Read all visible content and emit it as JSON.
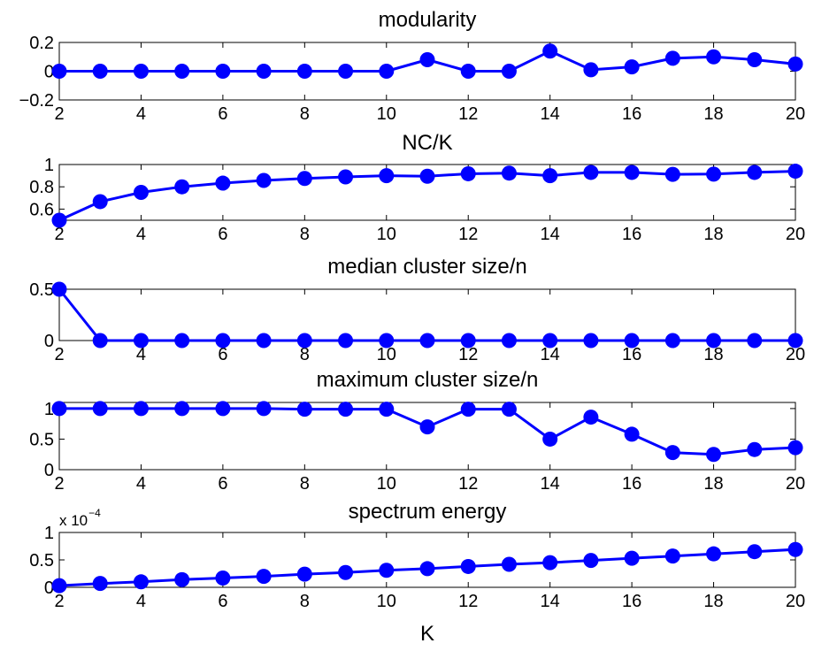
{
  "chart_data": [
    {
      "type": "line",
      "title": "modularity",
      "xlabel": "",
      "x": [
        2,
        3,
        4,
        5,
        6,
        7,
        8,
        9,
        10,
        11,
        12,
        13,
        14,
        15,
        16,
        17,
        18,
        19,
        20
      ],
      "series": [
        {
          "values": [
            0,
            0,
            0,
            0,
            0,
            0,
            0,
            0,
            0,
            0.08,
            0,
            0,
            0.14,
            0.01,
            0.03,
            0.09,
            0.1,
            0.08,
            0.05
          ]
        }
      ],
      "xlim": [
        2,
        20
      ],
      "ylim": [
        -0.2,
        0.2
      ],
      "xticks": [
        2,
        4,
        6,
        8,
        10,
        12,
        14,
        16,
        18,
        20
      ],
      "yticks": [
        -0.2,
        0,
        0.2
      ],
      "ytick_labels": [
        "−0.2",
        "0",
        "0.2"
      ],
      "color": "#0000ff",
      "grid": false
    },
    {
      "type": "line",
      "title": "NC/K",
      "xlabel": "",
      "x": [
        2,
        3,
        4,
        5,
        6,
        7,
        8,
        9,
        10,
        11,
        12,
        13,
        14,
        15,
        16,
        17,
        18,
        19,
        20
      ],
      "series": [
        {
          "values": [
            0.5,
            0.667,
            0.75,
            0.8,
            0.833,
            0.857,
            0.875,
            0.889,
            0.9,
            0.895,
            0.917,
            0.923,
            0.9,
            0.929,
            0.929,
            0.912,
            0.914,
            0.929,
            0.94
          ]
        }
      ],
      "xlim": [
        2,
        20
      ],
      "ylim": [
        0.5,
        1.0
      ],
      "xticks": [
        2,
        4,
        6,
        8,
        10,
        12,
        14,
        16,
        18,
        20
      ],
      "yticks": [
        0.6,
        0.8,
        1
      ],
      "ytick_labels": [
        "0.6",
        "0.8",
        "1"
      ],
      "color": "#0000ff",
      "grid": false
    },
    {
      "type": "line",
      "title": "median cluster size/n",
      "xlabel": "",
      "x": [
        2,
        3,
        4,
        5,
        6,
        7,
        8,
        9,
        10,
        11,
        12,
        13,
        14,
        15,
        16,
        17,
        18,
        19,
        20
      ],
      "series": [
        {
          "values": [
            0.5,
            0,
            0,
            0,
            0,
            0,
            0,
            0,
            0,
            0,
            0,
            0,
            0,
            0,
            0,
            0,
            0,
            0,
            0
          ]
        }
      ],
      "xlim": [
        2,
        20
      ],
      "ylim": [
        0,
        0.5
      ],
      "xticks": [
        2,
        4,
        6,
        8,
        10,
        12,
        14,
        16,
        18,
        20
      ],
      "yticks": [
        0,
        0.5
      ],
      "ytick_labels": [
        "0",
        "0.5"
      ],
      "color": "#0000ff",
      "grid": false
    },
    {
      "type": "line",
      "title": "maximum cluster size/n",
      "xlabel": "",
      "x": [
        2,
        3,
        4,
        5,
        6,
        7,
        8,
        9,
        10,
        11,
        12,
        13,
        14,
        15,
        16,
        17,
        18,
        19,
        20
      ],
      "series": [
        {
          "values": [
            1,
            1,
            1,
            1,
            1,
            1,
            0.99,
            0.99,
            0.99,
            0.7,
            0.99,
            0.99,
            0.5,
            0.86,
            0.58,
            0.28,
            0.25,
            0.33,
            0.36
          ]
        }
      ],
      "xlim": [
        2,
        20
      ],
      "ylim": [
        0,
        1.1
      ],
      "xticks": [
        2,
        4,
        6,
        8,
        10,
        12,
        14,
        16,
        18,
        20
      ],
      "yticks": [
        0,
        0.5,
        1
      ],
      "ytick_labels": [
        "0",
        "0.5",
        "1"
      ],
      "color": "#0000ff",
      "grid": false
    },
    {
      "type": "line",
      "title": "spectrum energy",
      "xlabel": "K",
      "x": [
        2,
        3,
        4,
        5,
        6,
        7,
        8,
        9,
        10,
        11,
        12,
        13,
        14,
        15,
        16,
        17,
        18,
        19,
        20
      ],
      "series": [
        {
          "values": [
            0.03,
            0.07,
            0.1,
            0.14,
            0.17,
            0.2,
            0.24,
            0.27,
            0.31,
            0.34,
            0.38,
            0.42,
            0.45,
            0.49,
            0.53,
            0.57,
            0.61,
            0.65,
            0.69
          ]
        }
      ],
      "xlim": [
        2,
        20
      ],
      "ylim": [
        0,
        1
      ],
      "xticks": [
        2,
        4,
        6,
        8,
        10,
        12,
        14,
        16,
        18,
        20
      ],
      "yticks": [
        0,
        0.5,
        1
      ],
      "ytick_labels": [
        "0",
        "0.5",
        "1"
      ],
      "y_multiplier_base": "x 10",
      "y_multiplier_exponent": "−4",
      "color": "#0000ff",
      "grid": false
    }
  ]
}
